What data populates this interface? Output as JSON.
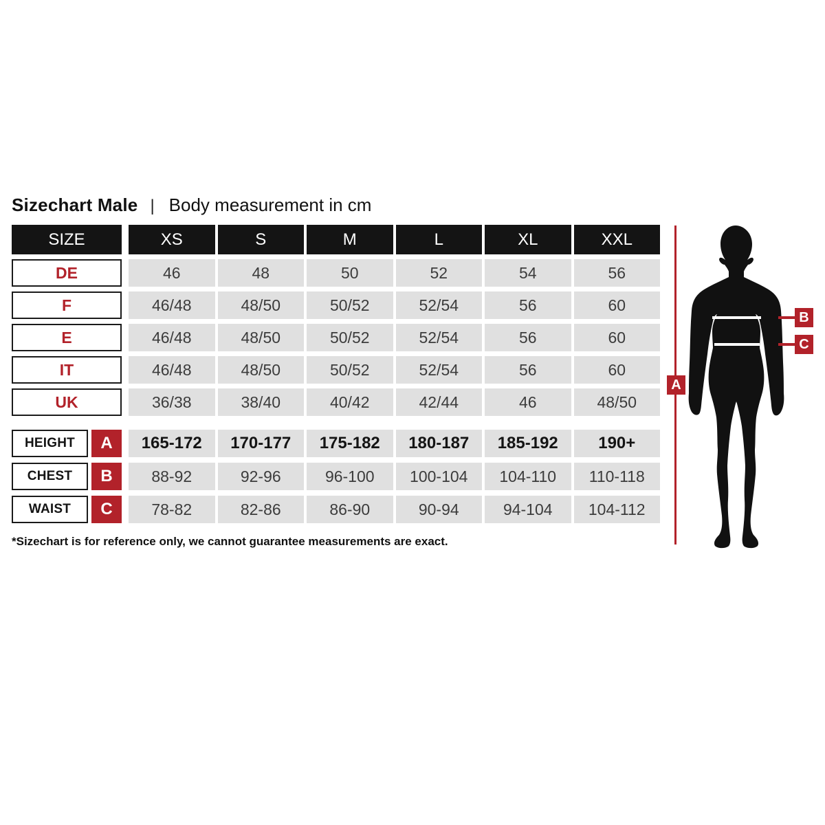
{
  "title": {
    "main": "Sizechart Male",
    "separator": "|",
    "sub": "Body measurement in cm"
  },
  "colors": {
    "accent_red": "#b2222a",
    "header_black": "#141414",
    "cell_gray": "#e0e0e0",
    "cell_text": "#3c3c3c"
  },
  "size_table": {
    "header": [
      "SIZE",
      "XS",
      "S",
      "M",
      "L",
      "XL",
      "XXL"
    ],
    "rows": [
      {
        "label": "DE",
        "values": [
          "46",
          "48",
          "50",
          "52",
          "54",
          "56"
        ]
      },
      {
        "label": "F",
        "values": [
          "46/48",
          "48/50",
          "50/52",
          "52/54",
          "56",
          "60"
        ]
      },
      {
        "label": "E",
        "values": [
          "46/48",
          "48/50",
          "50/52",
          "52/54",
          "56",
          "60"
        ]
      },
      {
        "label": "IT",
        "values": [
          "46/48",
          "48/50",
          "50/52",
          "52/54",
          "56",
          "60"
        ]
      },
      {
        "label": "UK",
        "values": [
          "36/38",
          "38/40",
          "40/42",
          "42/44",
          "46",
          "48/50"
        ]
      }
    ]
  },
  "measure_table": {
    "rows": [
      {
        "label": "HEIGHT",
        "marker": "A",
        "bold": true,
        "values": [
          "165-172",
          "170-177",
          "175-182",
          "180-187",
          "185-192",
          "190+"
        ]
      },
      {
        "label": "CHEST",
        "marker": "B",
        "bold": false,
        "values": [
          "88-92",
          "92-96",
          "96-100",
          "100-104",
          "104-110",
          "110-118"
        ]
      },
      {
        "label": "WAIST",
        "marker": "C",
        "bold": false,
        "values": [
          "78-82",
          "82-86",
          "86-90",
          "90-94",
          "94-104",
          "104-112"
        ]
      }
    ]
  },
  "figure": {
    "markers": {
      "a": "A",
      "b": "B",
      "c": "C"
    }
  },
  "footnote": "*Sizechart is for reference only, we cannot guarantee measurements are exact.",
  "chart_data": {
    "type": "table",
    "title": "Sizechart Male | Body measurement in cm",
    "columns": [
      "SIZE",
      "XS",
      "S",
      "M",
      "L",
      "XL",
      "XXL"
    ],
    "rows": [
      [
        "DE",
        "46",
        "48",
        "50",
        "52",
        "54",
        "56"
      ],
      [
        "F",
        "46/48",
        "48/50",
        "50/52",
        "52/54",
        "56",
        "60"
      ],
      [
        "E",
        "46/48",
        "48/50",
        "50/52",
        "52/54",
        "56",
        "60"
      ],
      [
        "IT",
        "46/48",
        "48/50",
        "50/52",
        "52/54",
        "56",
        "60"
      ],
      [
        "UK",
        "36/38",
        "38/40",
        "40/42",
        "42/44",
        "46",
        "48/50"
      ],
      [
        "HEIGHT (A)",
        "165-172",
        "170-177",
        "175-182",
        "180-187",
        "185-192",
        "190+"
      ],
      [
        "CHEST (B)",
        "88-92",
        "92-96",
        "96-100",
        "100-104",
        "104-110",
        "110-118"
      ],
      [
        "WAIST (C)",
        "78-82",
        "82-86",
        "86-90",
        "90-94",
        "94-104",
        "104-112"
      ]
    ],
    "footnote": "*Sizechart is for reference only, we cannot guarantee measurements are exact.",
    "legend": "A = height line, B = chest line, C = waist line on male body silhouette"
  }
}
